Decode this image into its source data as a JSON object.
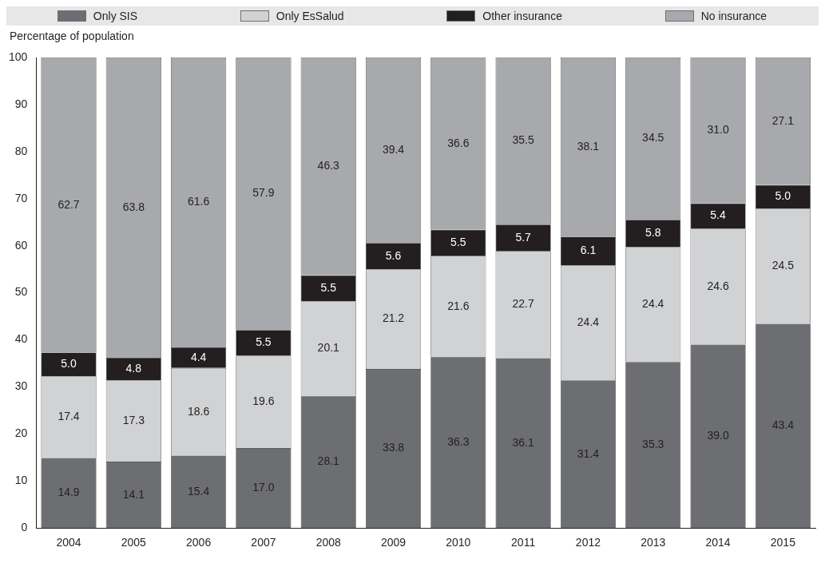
{
  "chart_data": {
    "type": "bar",
    "stacked": true,
    "ylabel": "Percentage of population",
    "categories": [
      "2004",
      "2005",
      "2006",
      "2007",
      "2008",
      "2009",
      "2010",
      "2011",
      "2012",
      "2013",
      "2014",
      "2015"
    ],
    "series": [
      {
        "name": "Only SIS",
        "color": "#6d6e71",
        "values": [
          14.9,
          14.1,
          15.4,
          17.0,
          28.1,
          33.8,
          36.3,
          36.1,
          31.4,
          35.3,
          39.0,
          43.4
        ],
        "value_labels": [
          "14.9",
          "14.1",
          "15.4",
          "17.0",
          "28.1",
          "33.8",
          "36.3",
          "36.1",
          "31.4",
          "35.3",
          "39.0",
          "43.4"
        ]
      },
      {
        "name": "Only EsSalud",
        "color": "#d0d2d3",
        "values": [
          17.4,
          17.3,
          18.6,
          19.6,
          20.1,
          21.2,
          21.6,
          22.7,
          24.4,
          24.4,
          24.6,
          24.5
        ],
        "value_labels": [
          "17.4",
          "17.3",
          "18.6",
          "19.6",
          "20.1",
          "21.2",
          "21.6",
          "22.7",
          "24.4",
          "24.4",
          "24.6",
          "24.5"
        ]
      },
      {
        "name": "Other insurance",
        "color": "#231f20",
        "values": [
          5.0,
          4.8,
          4.4,
          5.5,
          5.5,
          5.6,
          5.5,
          5.7,
          6.1,
          5.8,
          5.4,
          5.0
        ],
        "value_labels": [
          "5.0",
          "4.8",
          "4.4",
          "5.5",
          "5.5",
          "5.6",
          "5.5",
          "5.7",
          "6.1",
          "5.8",
          "5.4",
          "5.0"
        ]
      },
      {
        "name": "No insurance",
        "color": "#a7a9ac",
        "values": [
          62.7,
          63.8,
          61.6,
          57.9,
          46.3,
          39.4,
          36.6,
          35.5,
          38.1,
          34.5,
          31.0,
          27.1
        ],
        "value_labels": [
          "62.7",
          "63.8",
          "61.6",
          "57.9",
          "46.3",
          "39.4",
          "36.6",
          "35.5",
          "38.1",
          "34.5",
          "31.0",
          "27.1"
        ]
      }
    ],
    "ylim": [
      0,
      100
    ],
    "yticks": [
      0,
      10,
      20,
      30,
      40,
      50,
      60,
      70,
      80,
      90,
      100
    ],
    "grid": false,
    "legend": "top"
  }
}
